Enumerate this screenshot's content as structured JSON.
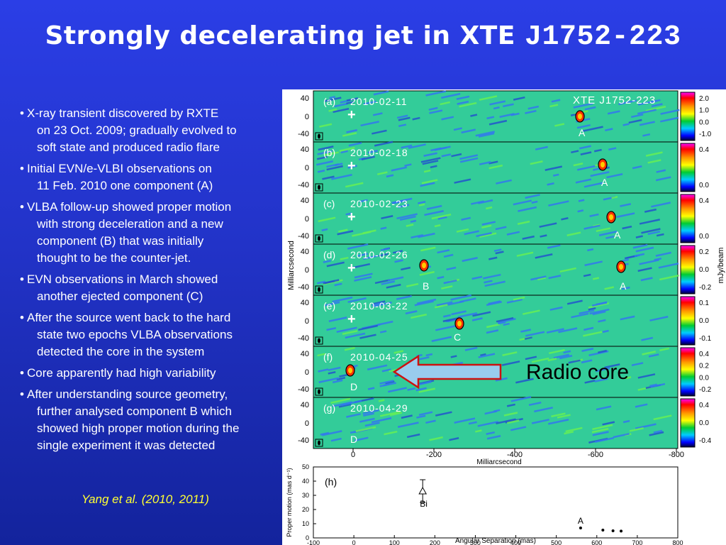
{
  "title": {
    "main": "Strongly decelerating jet in XTE",
    "source": "J1752-223"
  },
  "bullets": [
    {
      "first": "X-ray transient discovered by RXTE",
      "rest": [
        "on 23 Oct. 2009; gradually evolved to",
        "soft state and produced radio flare"
      ]
    },
    {
      "first": "Initial EVN/e-VLBI observations on",
      "rest": [
        "11 Feb. 2010 one component (A)"
      ]
    },
    {
      "first": "VLBA follow-up showed proper motion",
      "rest": [
        "with strong deceleration and a new",
        "component (B) that was initially",
        "thought to be the counter-jet."
      ]
    },
    {
      "first": "EVN observations in March showed",
      "rest": [
        "another ejected component (C)"
      ]
    },
    {
      "first": "After the source went back to the hard",
      "rest": [
        "state two epochs VLBA observations",
        "detected the core in the system"
      ]
    },
    {
      "first": "Core apparently had high variability",
      "rest": []
    },
    {
      "first": "After understanding source geometry,",
      "rest": [
        "further analysed component B which",
        "showed high proper motion during the",
        "single experiment it was detected"
      ]
    }
  ],
  "citation": "Yang et al. (2010, 2011)",
  "figure": {
    "source_label": "XTE J1752-223",
    "radio_core_label": "Radio core",
    "ylabel": "Milliarcsecond",
    "xlabel": "Milliarcsecond",
    "colorbar_unit": "mJy/beam",
    "y_ticks": [
      "40",
      "0",
      "-40"
    ],
    "x_ticks": [
      "0",
      "-200",
      "-400",
      "-600",
      "-800"
    ],
    "panels": [
      {
        "tag": "(a)",
        "date": "2010-02-11",
        "labels": [
          "A"
        ],
        "cbar": [
          "2.0",
          "1.0",
          "0.0",
          "-1.0"
        ]
      },
      {
        "tag": "(b)",
        "date": "2010-02-18",
        "labels": [
          "A"
        ],
        "cbar": [
          "0.4",
          "0.0"
        ]
      },
      {
        "tag": "(c)",
        "date": "2010-02-23",
        "labels": [
          "A"
        ],
        "cbar": [
          "0.4",
          "0.0"
        ]
      },
      {
        "tag": "(d)",
        "date": "2010-02-26",
        "labels": [
          "B",
          "A"
        ],
        "cbar": [
          "0.2",
          "0.0",
          "-0.2"
        ]
      },
      {
        "tag": "(e)",
        "date": "2010-03-22",
        "labels": [
          "C"
        ],
        "cbar": [
          "0.1",
          "0.0",
          "-0.1"
        ]
      },
      {
        "tag": "(f)",
        "date": "2010-04-25",
        "labels": [
          "D"
        ],
        "cbar": [
          "0.4",
          "0.2",
          "0.0",
          "-0.2"
        ]
      },
      {
        "tag": "(g)",
        "date": "2010-04-29",
        "labels": [
          "D"
        ],
        "cbar": [
          "0.4",
          "0.0",
          "-0.4"
        ]
      }
    ]
  },
  "chart_data": {
    "type": "scatter",
    "panel_label": "(h)",
    "xlabel": "Angular Separation (mas)",
    "ylabel": "Proper motion (mas d⁻¹)",
    "xlim": [
      -100,
      800
    ],
    "ylim": [
      0,
      50
    ],
    "x_ticks": [
      -100,
      0,
      100,
      200,
      300,
      400,
      500,
      600,
      700,
      800
    ],
    "y_ticks": [
      0,
      10,
      20,
      30,
      40,
      50
    ],
    "points": [
      {
        "label": "Bi",
        "x": 170,
        "y": 33,
        "err": 8,
        "marker": "triangle"
      },
      {
        "label": "A",
        "x": 560,
        "y": 7,
        "err": 0,
        "marker": "dot"
      },
      {
        "label": "",
        "x": 615,
        "y": 5.5,
        "err": 0,
        "marker": "dot"
      },
      {
        "label": "",
        "x": 640,
        "y": 5,
        "err": 0,
        "marker": "dot"
      },
      {
        "label": "",
        "x": 660,
        "y": 4.8,
        "err": 0,
        "marker": "dot"
      }
    ]
  }
}
